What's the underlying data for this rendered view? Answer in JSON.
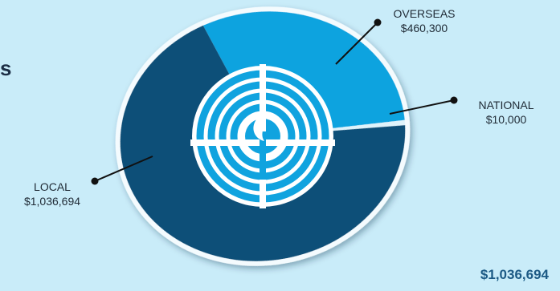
{
  "cropped_heading": "s",
  "total_label": "$1,036,694",
  "colors": {
    "background": "#c9ecf9",
    "local": "#0a4f78",
    "overseas": "#10a3df",
    "national": "#dff3fb",
    "emblem_blue": "#10a3df"
  },
  "chart_data": {
    "type": "pie",
    "title": "",
    "labels": [
      "OVERSEAS",
      "NATIONAL",
      "LOCAL"
    ],
    "values": [
      460300,
      10000,
      1036694
    ],
    "value_labels": [
      "$460,300",
      "$10,000",
      "$1,036,694"
    ],
    "center_emblem": "menorah-logo-icon"
  }
}
